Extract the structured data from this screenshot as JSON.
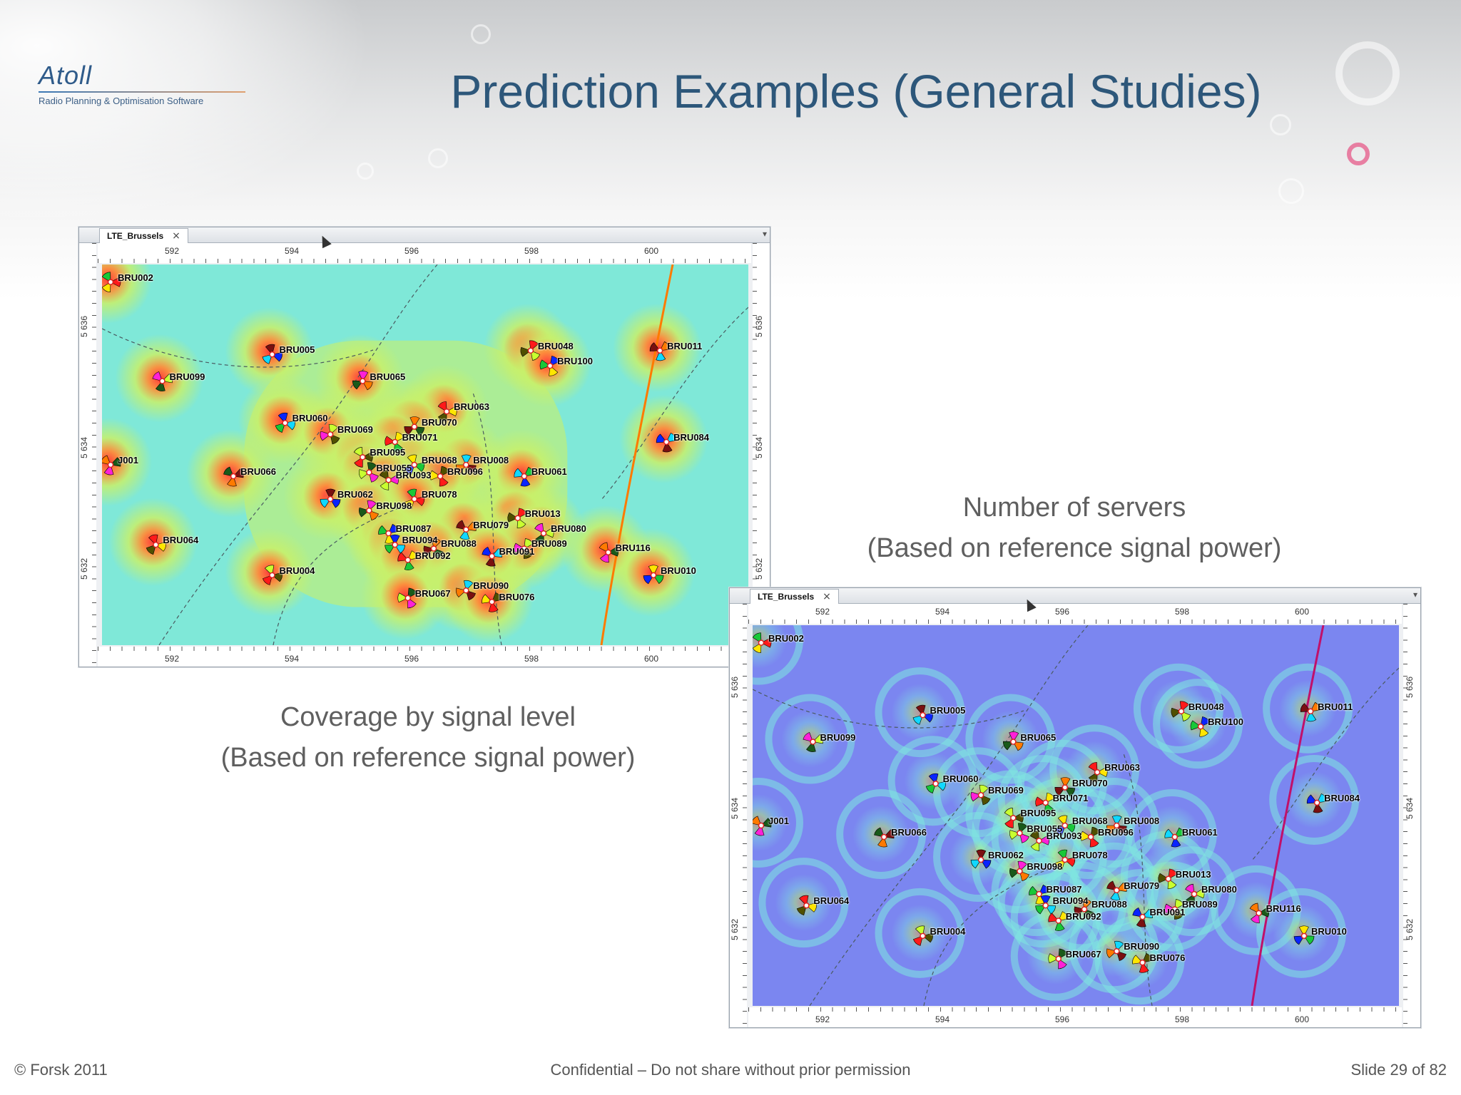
{
  "logo": {
    "name": "Atoll",
    "tagline": "Radio Planning & Optimisation Software"
  },
  "slide": {
    "title": "Prediction Examples (General Studies)"
  },
  "captions": {
    "coverage": {
      "line1": "Coverage by signal level",
      "line2": "(Based on reference signal power)"
    },
    "servers": {
      "line1": "Number of servers",
      "line2": "(Based on reference signal power)"
    }
  },
  "footer": {
    "copyright": "© Forsk 2011",
    "confidential": "Confidential – Do not share without prior permission",
    "slide_number": "Slide 29 of 82"
  },
  "map_windows": [
    {
      "tab_label": "LTE_Brussels",
      "x_ticks": [
        "592",
        "594",
        "596",
        "598",
        "600"
      ],
      "y_ticks": [
        "5 636",
        "5 634",
        "5 632"
      ],
      "style": "coverage",
      "colors": {
        "background": "#7fe8d8",
        "mid": "#c8f06a",
        "hot": "#ff8a3a",
        "core": "#ff3b3b"
      }
    },
    {
      "tab_label": "LTE_Brussels",
      "x_ticks": [
        "592",
        "594",
        "596",
        "598",
        "600"
      ],
      "y_ticks": [
        "5 636",
        "5 634",
        "5 632"
      ],
      "style": "servers",
      "colors": {
        "background": "#7b86f0",
        "mid": "#7fe8e0",
        "hot": "#b8f070",
        "core": "#ff9a40"
      }
    }
  ],
  "sites": [
    "BRU002",
    "BRU005",
    "BRU065",
    "BRU048",
    "BRU100",
    "BRU011",
    "BRU099",
    "BRU063",
    "BRU060",
    "BRU070",
    "BRU069",
    "BRU071",
    "BRU084",
    "J001",
    "BRU095",
    "BRU068",
    "BRU008",
    "BRU055",
    "BRU096",
    "BRU061",
    "BRU066",
    "BRU093",
    "BRU078",
    "BRU062",
    "BRU098",
    "BRU013",
    "BRU087",
    "BRU079",
    "BRU080",
    "BRU064",
    "BRU094",
    "BRU088",
    "BRU089",
    "BRU092",
    "BRU091",
    "BRU116",
    "BRU004",
    "BRU010",
    "BRU090",
    "BRU067",
    "BRU076"
  ]
}
